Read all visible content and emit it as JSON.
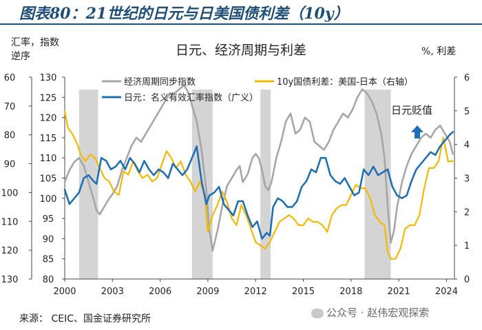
{
  "header": {
    "title": "图表80：21世纪的日元与日美国债利差（10y）"
  },
  "chart_data": {
    "type": "line",
    "title": "日元、经济周期与利差",
    "left_caption": "汇率，指数\n逆序",
    "right_caption": "%, 利差",
    "x_ticks": [
      "2000",
      "2003",
      "2006",
      "2009",
      "2012",
      "2015",
      "2018",
      "2021",
      "2024"
    ],
    "xlim": [
      2000.0,
      2024.5
    ],
    "left_axis_outer": {
      "label": "汇率，指数 逆序",
      "ticks": [
        60,
        70,
        80,
        90,
        100,
        110,
        120,
        130
      ],
      "reversed": true,
      "ylim": [
        60,
        130
      ]
    },
    "left_axis_inner": {
      "ticks": [
        130,
        125,
        120,
        115,
        110,
        105,
        100,
        95,
        90,
        85,
        80
      ],
      "ylim": [
        80,
        130
      ]
    },
    "right_axis": {
      "label": "%, 利差",
      "ticks": [
        0,
        1,
        2,
        3,
        4,
        5,
        6
      ],
      "ylim": [
        0,
        6
      ]
    },
    "recession_shading": [
      [
        2000.9,
        2002.1
      ],
      [
        2008.0,
        2009.3
      ],
      [
        2012.3,
        2012.95
      ],
      [
        2018.85,
        2020.5
      ]
    ],
    "annotation": {
      "text": "日元贬值",
      "arrow": "up"
    },
    "grid": false,
    "legend_placement": "top",
    "series": [
      {
        "name": "经济周期同步指数",
        "color": "#a6a6a6",
        "axis": "left_inner",
        "x": [
          2000.0,
          2000.3,
          2000.6,
          2000.9,
          2001.2,
          2001.5,
          2001.8,
          2002.0,
          2002.2,
          2002.5,
          2002.8,
          2003.0,
          2003.3,
          2003.6,
          2003.9,
          2004.2,
          2004.5,
          2004.8,
          2005.1,
          2005.4,
          2005.7,
          2006.0,
          2006.3,
          2006.6,
          2006.9,
          2007.2,
          2007.5,
          2007.8,
          2008.0,
          2008.3,
          2008.6,
          2008.9,
          2009.1,
          2009.3,
          2009.6,
          2009.9,
          2010.2,
          2010.5,
          2010.8,
          2011.0,
          2011.2,
          2011.5,
          2011.8,
          2012.0,
          2012.2,
          2012.4,
          2012.6,
          2012.8,
          2013.0,
          2013.3,
          2013.6,
          2013.9,
          2014.2,
          2014.5,
          2014.8,
          2015.1,
          2015.4,
          2015.7,
          2016.0,
          2016.3,
          2016.6,
          2016.9,
          2017.2,
          2017.5,
          2017.8,
          2018.1,
          2018.4,
          2018.7,
          2019.0,
          2019.3,
          2019.6,
          2019.9,
          2020.1,
          2020.3,
          2020.5,
          2020.7,
          2020.9,
          2021.2,
          2021.5,
          2021.8,
          2022.1,
          2022.4,
          2022.7,
          2023.0,
          2023.3,
          2023.6,
          2023.9,
          2024.2,
          2024.4
        ],
        "values": [
          104,
          107,
          109,
          110,
          108,
          104,
          100,
          97,
          96,
          98,
          100,
          101,
          103,
          107,
          110,
          113,
          115,
          114,
          116,
          118,
          120,
          122,
          124,
          126,
          126,
          127,
          128,
          126,
          123,
          119,
          112,
          102,
          92,
          87,
          92,
          98,
          103,
          105,
          107,
          108,
          104,
          106,
          110,
          111,
          110,
          107,
          103,
          102,
          104,
          110,
          114,
          119,
          121,
          116,
          117,
          120,
          119,
          114,
          113,
          112,
          114,
          117,
          119,
          121,
          120,
          122,
          125,
          127,
          126,
          124,
          121,
          116,
          110,
          98,
          89,
          92,
          98,
          104,
          108,
          111,
          113,
          115,
          116,
          115,
          117,
          118,
          116,
          114,
          111
        ]
      },
      {
        "name": "10y国债利差：美国-日本（右轴）",
        "color": "#f5b800",
        "axis": "right",
        "x": [
          2000.0,
          2000.2,
          2000.5,
          2000.8,
          2001.0,
          2001.3,
          2001.6,
          2001.9,
          2002.2,
          2002.5,
          2002.8,
          2003.1,
          2003.4,
          2003.7,
          2004.0,
          2004.3,
          2004.6,
          2004.9,
          2005.2,
          2005.5,
          2005.8,
          2006.1,
          2006.4,
          2006.7,
          2007.0,
          2007.3,
          2007.6,
          2007.9,
          2008.2,
          2008.5,
          2008.8,
          2009.0,
          2009.3,
          2009.6,
          2009.9,
          2010.2,
          2010.5,
          2010.8,
          2011.1,
          2011.4,
          2011.7,
          2012.0,
          2012.3,
          2012.6,
          2012.9,
          2013.2,
          2013.5,
          2013.8,
          2014.1,
          2014.4,
          2014.7,
          2015.0,
          2015.3,
          2015.6,
          2015.9,
          2016.2,
          2016.5,
          2016.8,
          2017.1,
          2017.4,
          2017.7,
          2018.0,
          2018.3,
          2018.6,
          2018.9,
          2019.2,
          2019.5,
          2019.8,
          2020.1,
          2020.3,
          2020.5,
          2020.8,
          2021.1,
          2021.4,
          2021.7,
          2022.0,
          2022.3,
          2022.6,
          2022.9,
          2023.2,
          2023.5,
          2023.8,
          2024.1,
          2024.4
        ],
        "values": [
          5.0,
          4.5,
          4.3,
          4.0,
          3.7,
          3.5,
          3.7,
          3.6,
          3.3,
          3.0,
          2.9,
          2.6,
          2.5,
          3.2,
          3.1,
          3.5,
          3.2,
          3.0,
          3.1,
          2.9,
          3.0,
          3.4,
          3.8,
          3.6,
          3.3,
          3.5,
          3.1,
          2.9,
          2.6,
          2.9,
          2.5,
          1.4,
          1.9,
          2.2,
          2.6,
          2.3,
          1.8,
          1.6,
          2.2,
          1.9,
          1.5,
          1.1,
          1.0,
          0.9,
          1.1,
          1.4,
          1.7,
          1.8,
          1.9,
          1.8,
          1.6,
          1.6,
          1.8,
          1.7,
          1.7,
          1.6,
          1.4,
          1.9,
          2.1,
          2.2,
          2.2,
          2.5,
          2.8,
          2.7,
          2.7,
          2.4,
          1.9,
          1.7,
          1.6,
          0.8,
          0.6,
          0.6,
          0.9,
          1.5,
          1.6,
          1.6,
          1.9,
          2.7,
          3.3,
          3.3,
          3.5,
          4.2,
          3.5,
          3.5
        ]
      },
      {
        "name": "日元：名义有效汇率指数（广义）",
        "color": "#1f6fb5",
        "axis": "left_outer",
        "x": [
          2000.0,
          2000.3,
          2000.6,
          2000.9,
          2001.2,
          2001.5,
          2001.8,
          2002.0,
          2002.3,
          2002.6,
          2002.9,
          2003.2,
          2003.5,
          2003.8,
          2004.1,
          2004.4,
          2004.7,
          2005.0,
          2005.3,
          2005.6,
          2005.9,
          2006.2,
          2006.5,
          2006.8,
          2007.1,
          2007.4,
          2007.7,
          2008.0,
          2008.3,
          2008.6,
          2008.9,
          2009.1,
          2009.4,
          2009.7,
          2010.0,
          2010.3,
          2010.6,
          2010.9,
          2011.2,
          2011.5,
          2011.8,
          2012.1,
          2012.4,
          2012.7,
          2012.9,
          2013.1,
          2013.4,
          2013.7,
          2014.0,
          2014.3,
          2014.6,
          2014.9,
          2015.2,
          2015.5,
          2015.8,
          2016.1,
          2016.4,
          2016.7,
          2017.0,
          2017.3,
          2017.6,
          2017.9,
          2018.2,
          2018.5,
          2018.8,
          2019.1,
          2019.4,
          2019.7,
          2020.0,
          2020.3,
          2020.6,
          2020.9,
          2021.2,
          2021.5,
          2021.8,
          2022.1,
          2022.4,
          2022.7,
          2023.0,
          2023.3,
          2023.6,
          2023.9,
          2024.2,
          2024.4
        ],
        "values": [
          99,
          104,
          102,
          100,
          95,
          94,
          96,
          97,
          88,
          89,
          92,
          91,
          89,
          92,
          88,
          90,
          93,
          89,
          92,
          94,
          92,
          93,
          95,
          90,
          92,
          94,
          92,
          88,
          84,
          96,
          104,
          101,
          100,
          98,
          104,
          106,
          108,
          103,
          103,
          108,
          112,
          110,
          116,
          114,
          115,
          105,
          102,
          103,
          105,
          105,
          103,
          98,
          96,
          92,
          93,
          88,
          88,
          94,
          96,
          97,
          95,
          98,
          101,
          100,
          92,
          94,
          91,
          94,
          93,
          92,
          98,
          101,
          102,
          101,
          96,
          92,
          90,
          88,
          86,
          87,
          84,
          82,
          80,
          79
        ]
      }
    ]
  },
  "source": "来源： CEIC、国金证券研究所",
  "watermark": "公众号 · 赵伟宏观探索"
}
